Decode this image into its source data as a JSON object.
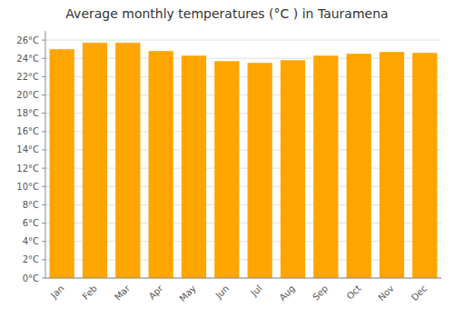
{
  "chart_data": {
    "type": "bar",
    "title": "Average monthly temperatures (°C ) in Tauramena",
    "categories": [
      "Jan",
      "Feb",
      "Mar",
      "Apr",
      "May",
      "Jun",
      "Jul",
      "Aug",
      "Sep",
      "Oct",
      "Nov",
      "Dec"
    ],
    "values": [
      25.0,
      25.7,
      25.7,
      24.8,
      24.3,
      23.7,
      23.5,
      23.8,
      24.3,
      24.5,
      24.7,
      24.6
    ],
    "color": "#FFA500",
    "ylim": [
      0,
      27
    ],
    "yticks": [
      {
        "value": 0,
        "label": "0°C"
      },
      {
        "value": 2,
        "label": "2°C"
      },
      {
        "value": 4,
        "label": "4°C"
      },
      {
        "value": 6,
        "label": "6°C"
      },
      {
        "value": 8,
        "label": "8°C"
      },
      {
        "value": 10,
        "label": "10°C"
      },
      {
        "value": 12,
        "label": "12°C"
      },
      {
        "value": 14,
        "label": "14°C"
      },
      {
        "value": 16,
        "label": "16°C"
      },
      {
        "value": 18,
        "label": "18°C"
      },
      {
        "value": 20,
        "label": "20°C"
      },
      {
        "value": 22,
        "label": "22°C"
      },
      {
        "value": 24,
        "label": "24°C"
      },
      {
        "value": 26,
        "label": "26°C"
      }
    ],
    "grid": true
  }
}
